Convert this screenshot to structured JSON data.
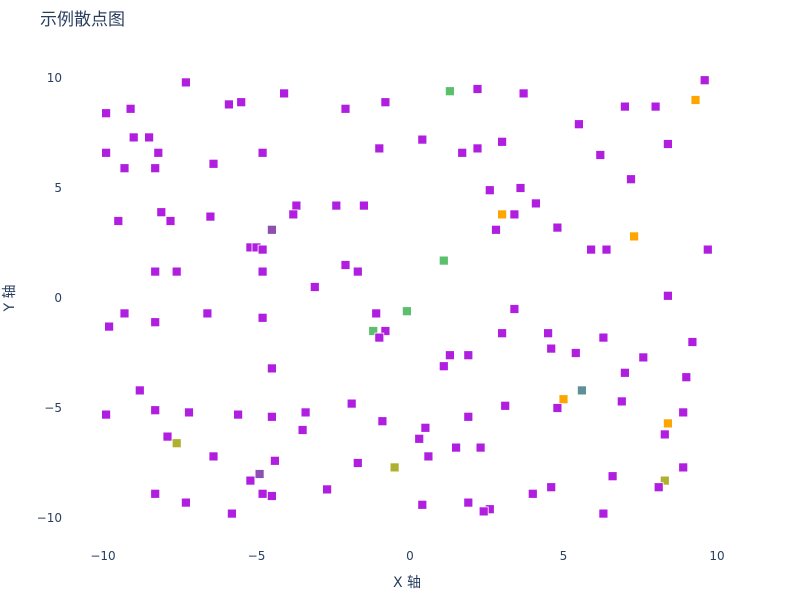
{
  "chart_data": {
    "type": "scatter",
    "title": "示例散点图",
    "xlabel": "X 轴",
    "ylabel": "Y 轴",
    "xlim": [
      -11,
      12
    ],
    "ylim": [
      -11,
      11
    ],
    "xticks": [
      -10,
      -5,
      0,
      5,
      10
    ],
    "yticks": [
      -10,
      -5,
      0,
      5,
      10
    ],
    "xtick_labels": [
      "−10",
      "−5",
      "0",
      "5",
      "10"
    ],
    "ytick_labels": [
      "−10",
      "−5",
      "0",
      "5",
      "10"
    ],
    "grid": false,
    "marker": "square",
    "colors": {
      "purple": "#b01ee0",
      "orange": "#ffa500",
      "green": "#5cbf6b",
      "olive": "#b0b030",
      "teal": "#5f9098",
      "violet": "#8c50b0"
    },
    "points": [
      {
        "x": -7.3,
        "y": 9.8,
        "color": "purple"
      },
      {
        "x": -9.9,
        "y": 8.4,
        "color": "purple"
      },
      {
        "x": -9.1,
        "y": 8.6,
        "color": "purple"
      },
      {
        "x": -5.9,
        "y": 8.8,
        "color": "purple"
      },
      {
        "x": -5.5,
        "y": 8.9,
        "color": "purple"
      },
      {
        "x": -4.1,
        "y": 9.3,
        "color": "purple"
      },
      {
        "x": -2.1,
        "y": 8.6,
        "color": "purple"
      },
      {
        "x": -0.8,
        "y": 8.9,
        "color": "purple"
      },
      {
        "x": 1.3,
        "y": 9.4,
        "color": "green"
      },
      {
        "x": 2.2,
        "y": 9.5,
        "color": "purple"
      },
      {
        "x": 3.7,
        "y": 9.3,
        "color": "purple"
      },
      {
        "x": 9.6,
        "y": 9.9,
        "color": "purple"
      },
      {
        "x": 9.3,
        "y": 9.0,
        "color": "orange"
      },
      {
        "x": 7.0,
        "y": 8.7,
        "color": "purple"
      },
      {
        "x": 8.0,
        "y": 8.7,
        "color": "purple"
      },
      {
        "x": 5.5,
        "y": 7.9,
        "color": "purple"
      },
      {
        "x": -9.0,
        "y": 7.3,
        "color": "purple"
      },
      {
        "x": -8.5,
        "y": 7.3,
        "color": "purple"
      },
      {
        "x": -9.9,
        "y": 6.6,
        "color": "purple"
      },
      {
        "x": -8.2,
        "y": 6.6,
        "color": "purple"
      },
      {
        "x": -4.8,
        "y": 6.6,
        "color": "purple"
      },
      {
        "x": -1.0,
        "y": 6.8,
        "color": "purple"
      },
      {
        "x": 0.4,
        "y": 7.2,
        "color": "purple"
      },
      {
        "x": 1.7,
        "y": 6.6,
        "color": "purple"
      },
      {
        "x": 2.2,
        "y": 6.8,
        "color": "purple"
      },
      {
        "x": 3.0,
        "y": 7.1,
        "color": "purple"
      },
      {
        "x": 6.2,
        "y": 6.5,
        "color": "purple"
      },
      {
        "x": 8.4,
        "y": 7.0,
        "color": "purple"
      },
      {
        "x": -9.3,
        "y": 5.9,
        "color": "purple"
      },
      {
        "x": -8.3,
        "y": 5.9,
        "color": "purple"
      },
      {
        "x": -6.4,
        "y": 6.1,
        "color": "purple"
      },
      {
        "x": 7.2,
        "y": 5.4,
        "color": "purple"
      },
      {
        "x": 2.6,
        "y": 4.9,
        "color": "purple"
      },
      {
        "x": 3.6,
        "y": 5.0,
        "color": "purple"
      },
      {
        "x": -8.1,
        "y": 3.9,
        "color": "purple"
      },
      {
        "x": -7.8,
        "y": 3.5,
        "color": "purple"
      },
      {
        "x": -9.5,
        "y": 3.5,
        "color": "purple"
      },
      {
        "x": -6.5,
        "y": 3.7,
        "color": "purple"
      },
      {
        "x": -3.7,
        "y": 4.2,
        "color": "purple"
      },
      {
        "x": -3.8,
        "y": 3.8,
        "color": "purple"
      },
      {
        "x": -2.4,
        "y": 4.2,
        "color": "purple"
      },
      {
        "x": -1.5,
        "y": 4.2,
        "color": "purple"
      },
      {
        "x": 3.0,
        "y": 3.8,
        "color": "orange"
      },
      {
        "x": 3.4,
        "y": 3.8,
        "color": "purple"
      },
      {
        "x": 4.1,
        "y": 4.3,
        "color": "purple"
      },
      {
        "x": 2.8,
        "y": 3.1,
        "color": "purple"
      },
      {
        "x": 4.8,
        "y": 3.2,
        "color": "purple"
      },
      {
        "x": -4.5,
        "y": 3.1,
        "color": "violet"
      },
      {
        "x": 7.3,
        "y": 2.8,
        "color": "orange"
      },
      {
        "x": -5.2,
        "y": 2.3,
        "color": "purple"
      },
      {
        "x": -5.0,
        "y": 2.3,
        "color": "purple"
      },
      {
        "x": -4.8,
        "y": 2.2,
        "color": "purple"
      },
      {
        "x": 5.9,
        "y": 2.2,
        "color": "purple"
      },
      {
        "x": 6.4,
        "y": 2.2,
        "color": "purple"
      },
      {
        "x": 9.7,
        "y": 2.2,
        "color": "purple"
      },
      {
        "x": 1.1,
        "y": 1.7,
        "color": "green"
      },
      {
        "x": -2.1,
        "y": 1.5,
        "color": "purple"
      },
      {
        "x": -1.7,
        "y": 1.2,
        "color": "purple"
      },
      {
        "x": -8.3,
        "y": 1.2,
        "color": "purple"
      },
      {
        "x": -7.6,
        "y": 1.2,
        "color": "purple"
      },
      {
        "x": -4.8,
        "y": 1.2,
        "color": "purple"
      },
      {
        "x": -3.1,
        "y": 0.5,
        "color": "purple"
      },
      {
        "x": 8.4,
        "y": 0.1,
        "color": "purple"
      },
      {
        "x": -9.8,
        "y": -1.3,
        "color": "purple"
      },
      {
        "x": -9.3,
        "y": -0.7,
        "color": "purple"
      },
      {
        "x": -8.3,
        "y": -1.1,
        "color": "purple"
      },
      {
        "x": -6.6,
        "y": -0.7,
        "color": "purple"
      },
      {
        "x": -4.8,
        "y": -0.9,
        "color": "purple"
      },
      {
        "x": -1.1,
        "y": -0.7,
        "color": "purple"
      },
      {
        "x": -0.1,
        "y": -0.6,
        "color": "green"
      },
      {
        "x": -1.2,
        "y": -1.5,
        "color": "green"
      },
      {
        "x": -0.8,
        "y": -1.5,
        "color": "purple"
      },
      {
        "x": -1.0,
        "y": -1.8,
        "color": "purple"
      },
      {
        "x": 3.4,
        "y": -0.5,
        "color": "purple"
      },
      {
        "x": 3.0,
        "y": -1.6,
        "color": "purple"
      },
      {
        "x": 4.5,
        "y": -1.6,
        "color": "purple"
      },
      {
        "x": 6.3,
        "y": -1.8,
        "color": "purple"
      },
      {
        "x": 9.2,
        "y": -2.0,
        "color": "purple"
      },
      {
        "x": 4.6,
        "y": -2.3,
        "color": "purple"
      },
      {
        "x": 5.4,
        "y": -2.5,
        "color": "purple"
      },
      {
        "x": 1.3,
        "y": -2.6,
        "color": "purple"
      },
      {
        "x": 1.9,
        "y": -2.6,
        "color": "purple"
      },
      {
        "x": 1.1,
        "y": -3.1,
        "color": "purple"
      },
      {
        "x": 7.6,
        "y": -2.7,
        "color": "purple"
      },
      {
        "x": -4.5,
        "y": -3.2,
        "color": "purple"
      },
      {
        "x": 7.0,
        "y": -3.4,
        "color": "purple"
      },
      {
        "x": 9.0,
        "y": -3.6,
        "color": "purple"
      },
      {
        "x": -8.8,
        "y": -4.2,
        "color": "purple"
      },
      {
        "x": 5.6,
        "y": -4.2,
        "color": "teal"
      },
      {
        "x": 5.0,
        "y": -4.6,
        "color": "orange"
      },
      {
        "x": 6.9,
        "y": -4.7,
        "color": "purple"
      },
      {
        "x": -9.9,
        "y": -5.3,
        "color": "purple"
      },
      {
        "x": -8.3,
        "y": -5.1,
        "color": "purple"
      },
      {
        "x": -7.2,
        "y": -5.2,
        "color": "purple"
      },
      {
        "x": -5.6,
        "y": -5.3,
        "color": "purple"
      },
      {
        "x": -4.5,
        "y": -5.4,
        "color": "purple"
      },
      {
        "x": -3.4,
        "y": -5.2,
        "color": "purple"
      },
      {
        "x": -1.9,
        "y": -4.8,
        "color": "purple"
      },
      {
        "x": -0.9,
        "y": -5.6,
        "color": "purple"
      },
      {
        "x": 1.9,
        "y": -5.4,
        "color": "purple"
      },
      {
        "x": 3.1,
        "y": -4.9,
        "color": "purple"
      },
      {
        "x": 4.8,
        "y": -5.0,
        "color": "purple"
      },
      {
        "x": 8.9,
        "y": -5.2,
        "color": "purple"
      },
      {
        "x": 8.4,
        "y": -5.7,
        "color": "orange"
      },
      {
        "x": -3.5,
        "y": -6.0,
        "color": "purple"
      },
      {
        "x": 0.5,
        "y": -5.9,
        "color": "purple"
      },
      {
        "x": -7.9,
        "y": -6.3,
        "color": "purple"
      },
      {
        "x": -7.6,
        "y": -6.6,
        "color": "olive"
      },
      {
        "x": 0.3,
        "y": -6.4,
        "color": "purple"
      },
      {
        "x": 8.3,
        "y": -6.2,
        "color": "purple"
      },
      {
        "x": 1.5,
        "y": -6.8,
        "color": "purple"
      },
      {
        "x": 2.3,
        "y": -6.8,
        "color": "purple"
      },
      {
        "x": -6.4,
        "y": -7.2,
        "color": "purple"
      },
      {
        "x": 0.6,
        "y": -7.2,
        "color": "purple"
      },
      {
        "x": -4.4,
        "y": -7.4,
        "color": "purple"
      },
      {
        "x": -1.7,
        "y": -7.5,
        "color": "purple"
      },
      {
        "x": -0.5,
        "y": -7.7,
        "color": "olive"
      },
      {
        "x": 8.9,
        "y": -7.7,
        "color": "purple"
      },
      {
        "x": -4.9,
        "y": -8.0,
        "color": "violet"
      },
      {
        "x": -5.2,
        "y": -8.3,
        "color": "purple"
      },
      {
        "x": 6.6,
        "y": -8.1,
        "color": "purple"
      },
      {
        "x": 8.3,
        "y": -8.3,
        "color": "olive"
      },
      {
        "x": 8.1,
        "y": -8.6,
        "color": "purple"
      },
      {
        "x": 4.6,
        "y": -8.6,
        "color": "purple"
      },
      {
        "x": -2.7,
        "y": -8.7,
        "color": "purple"
      },
      {
        "x": -8.3,
        "y": -8.9,
        "color": "purple"
      },
      {
        "x": -4.8,
        "y": -8.9,
        "color": "purple"
      },
      {
        "x": -4.5,
        "y": -9.0,
        "color": "purple"
      },
      {
        "x": 4.0,
        "y": -8.9,
        "color": "purple"
      },
      {
        "x": -7.3,
        "y": -9.3,
        "color": "purple"
      },
      {
        "x": 0.4,
        "y": -9.4,
        "color": "purple"
      },
      {
        "x": 1.9,
        "y": -9.3,
        "color": "purple"
      },
      {
        "x": 2.6,
        "y": -9.6,
        "color": "purple"
      },
      {
        "x": 2.4,
        "y": -9.7,
        "color": "purple"
      },
      {
        "x": -5.8,
        "y": -9.8,
        "color": "purple"
      },
      {
        "x": 6.3,
        "y": -9.8,
        "color": "purple"
      }
    ]
  }
}
